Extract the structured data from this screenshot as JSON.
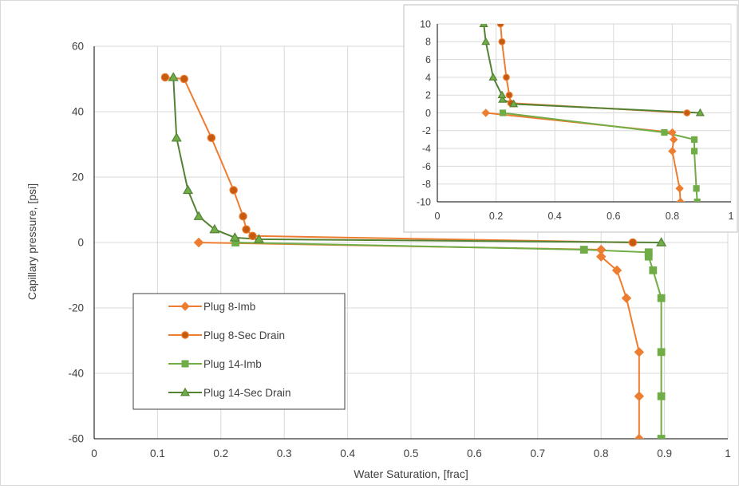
{
  "chart_data": [
    {
      "type": "scatter",
      "title": "",
      "xlabel": "Water Saturation, [frac]",
      "ylabel": "Capillary pressure, [psi]",
      "xlim": [
        0,
        1
      ],
      "ylim": [
        -60,
        60
      ],
      "x_ticks": [
        "0",
        "0.1",
        "0.2",
        "0.3",
        "0.4",
        "0.5",
        "0.6",
        "0.7",
        "0.8",
        "0.9",
        "1"
      ],
      "y_ticks": [
        "60",
        "40",
        "20",
        "0",
        "-20",
        "-40",
        "-60"
      ],
      "grid": true,
      "legend_position": "bottom-left",
      "series": [
        {
          "name": "Plug 8-Imb",
          "color": "#ED7D31",
          "marker": "diamond",
          "marker_fill": "#ED7D31",
          "x": [
            0.165,
            0.8,
            0.8,
            0.825,
            0.84,
            0.86,
            0.86,
            0.86
          ],
          "y": [
            0,
            -2.2,
            -4.3,
            -8.5,
            -17,
            -33.5,
            -47,
            -60
          ]
        },
        {
          "name": "Plug 8-Sec Drain",
          "color": "#ED7D31",
          "marker": "circle",
          "marker_fill": "#C55A11",
          "x": [
            0.85,
            0.25,
            0.24,
            0.235,
            0.22,
            0.185,
            0.142,
            0.112
          ],
          "y": [
            0,
            2,
            4,
            8,
            16,
            32,
            50,
            50.5
          ]
        },
        {
          "name": "Plug 14-Imb",
          "color": "#70AD47",
          "marker": "square",
          "marker_fill": "#70AD47",
          "x": [
            0.223,
            0.773,
            0.875,
            0.875,
            0.882,
            0.895,
            0.895,
            0.895,
            0.895
          ],
          "y": [
            0,
            -2.2,
            -3,
            -4.3,
            -8.5,
            -17,
            -33.5,
            -47,
            -60
          ]
        },
        {
          "name": "Plug 14-Sec Drain",
          "color": "#548235",
          "marker": "triangle",
          "marker_fill": "#70AD47",
          "x": [
            0.895,
            0.26,
            0.222,
            0.19,
            0.165,
            0.148,
            0.13,
            0.125
          ],
          "y": [
            0,
            1,
            1.5,
            4,
            8,
            16,
            32,
            50.5
          ]
        }
      ]
    },
    {
      "type": "scatter",
      "title": "",
      "xlabel": "",
      "ylabel": "",
      "xlim": [
        0,
        1
      ],
      "ylim": [
        -10,
        10
      ],
      "x_ticks": [
        "0",
        "0.2",
        "0.4",
        "0.6",
        "0.8",
        "1"
      ],
      "y_ticks": [
        "10",
        "8",
        "6",
        "4",
        "2",
        "0",
        "-2",
        "-4",
        "-6",
        "-8",
        "-10"
      ],
      "grid": true,
      "legend_position": "none",
      "series": [
        {
          "color": "#ED7D31",
          "marker": "diamond",
          "marker_fill": "#ED7D31",
          "x": [
            0.165,
            0.8,
            0.805,
            0.8,
            0.825,
            0.828
          ],
          "y": [
            0,
            -2.2,
            -3,
            -4.3,
            -8.5,
            -10
          ]
        },
        {
          "color": "#ED7D31",
          "marker": "circle",
          "marker_fill": "#C55A11",
          "x": [
            0.85,
            0.25,
            0.245,
            0.235,
            0.22,
            0.215
          ],
          "y": [
            0,
            1.1,
            2,
            4,
            8,
            10
          ]
        },
        {
          "color": "#70AD47",
          "marker": "square",
          "marker_fill": "#70AD47",
          "x": [
            0.223,
            0.773,
            0.875,
            0.875,
            0.882,
            0.885
          ],
          "y": [
            0,
            -2.2,
            -3,
            -4.3,
            -8.5,
            -10
          ]
        },
        {
          "color": "#548235",
          "marker": "triangle",
          "marker_fill": "#70AD47",
          "x": [
            0.895,
            0.26,
            0.222,
            0.22,
            0.19,
            0.165,
            0.158
          ],
          "y": [
            0,
            1,
            1.5,
            2,
            4,
            8,
            10
          ]
        }
      ]
    }
  ]
}
